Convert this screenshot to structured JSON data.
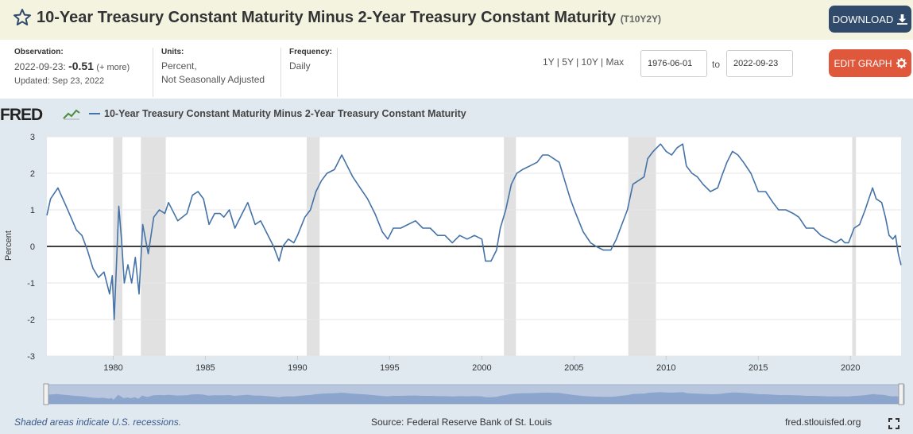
{
  "header": {
    "title": "10-Year Treasury Constant Maturity Minus 2-Year Treasury Constant Maturity",
    "series_id": "(T10Y2Y)",
    "download_label": "DOWNLOAD"
  },
  "meta": {
    "observation_label": "Observation:",
    "observation_date": "2022-09-23:",
    "observation_value": "-0.51",
    "observation_more": "(+ more)",
    "updated": "Updated: Sep 23, 2022",
    "units_label": "Units:",
    "units_line1": "Percent,",
    "units_line2": "Not Seasonally Adjusted",
    "frequency_label": "Frequency:",
    "frequency_value": "Daily"
  },
  "controls": {
    "range_1y": "1Y",
    "range_5y": "5Y",
    "range_10y": "10Y",
    "range_max": "Max",
    "start_date": "1976-06-01",
    "to_label": "to",
    "end_date": "2022-09-23",
    "edit_label": "EDIT GRAPH"
  },
  "legend": {
    "logo": "FRED",
    "series": "10-Year Treasury Constant Maturity Minus 2-Year Treasury Constant Maturity"
  },
  "footer": {
    "recession_note": "Shaded areas indicate U.S. recessions.",
    "source": "Source: Federal Reserve Bank of St. Louis",
    "site": "fred.stlouisfed.org"
  },
  "colors": {
    "line": "#4572a7",
    "recession": "#e1e1e1",
    "header_bg": "#f3f3e0",
    "download_bg": "#2f4a6b",
    "edit_bg": "#e0583c"
  },
  "chart_data": {
    "type": "line",
    "ylabel": "Percent",
    "ylim": [
      -3,
      3
    ],
    "yticks": [
      -3,
      -2,
      -1,
      0,
      1,
      2,
      3
    ],
    "xlim": [
      1976.4,
      2022.75
    ],
    "xticks": [
      1980,
      1985,
      1990,
      1995,
      2000,
      2005,
      2010,
      2015,
      2020
    ],
    "recessions": [
      [
        1980.0,
        1980.5
      ],
      [
        1981.5,
        1982.85
      ],
      [
        1990.5,
        1991.2
      ],
      [
        2001.2,
        2001.85
      ],
      [
        2007.95,
        2009.45
      ],
      [
        2020.1,
        2020.3
      ]
    ],
    "series": [
      {
        "name": "10-Year Treasury Constant Maturity Minus 2-Year Treasury Constant Maturity",
        "x": [
          1976.4,
          1976.6,
          1977.0,
          1977.4,
          1977.7,
          1978.0,
          1978.3,
          1978.6,
          1978.9,
          1979.2,
          1979.5,
          1979.8,
          1979.95,
          1980.05,
          1980.15,
          1980.3,
          1980.45,
          1980.6,
          1980.8,
          1981.0,
          1981.2,
          1981.4,
          1981.6,
          1981.75,
          1981.9,
          1982.2,
          1982.5,
          1982.8,
          1983.0,
          1983.5,
          1984.0,
          1984.3,
          1984.6,
          1984.9,
          1985.2,
          1985.5,
          1985.8,
          1986.0,
          1986.3,
          1986.6,
          1987.0,
          1987.3,
          1987.7,
          1988.0,
          1988.3,
          1988.7,
          1989.0,
          1989.2,
          1989.5,
          1989.8,
          1990.0,
          1990.4,
          1990.7,
          1991.0,
          1991.3,
          1991.6,
          1992.0,
          1992.4,
          1992.7,
          1993.0,
          1993.4,
          1993.8,
          1994.2,
          1994.6,
          1994.9,
          1995.2,
          1995.6,
          1996.0,
          1996.4,
          1996.8,
          1997.2,
          1997.6,
          1998.0,
          1998.4,
          1998.8,
          1999.2,
          1999.6,
          2000.0,
          2000.2,
          2000.5,
          2000.8,
          2001.0,
          2001.3,
          2001.6,
          2001.9,
          2002.2,
          2002.6,
          2003.0,
          2003.3,
          2003.6,
          2003.9,
          2004.2,
          2004.5,
          2004.8,
          2005.1,
          2005.5,
          2005.9,
          2006.2,
          2006.6,
          2007.0,
          2007.3,
          2007.6,
          2007.9,
          2008.2,
          2008.5,
          2008.8,
          2009.0,
          2009.3,
          2009.5,
          2009.7,
          2010.0,
          2010.3,
          2010.6,
          2010.9,
          2011.1,
          2011.4,
          2011.7,
          2012.0,
          2012.4,
          2012.8,
          2013.0,
          2013.3,
          2013.6,
          2013.9,
          2014.2,
          2014.6,
          2015.0,
          2015.4,
          2015.8,
          2016.1,
          2016.5,
          2016.9,
          2017.2,
          2017.6,
          2018.0,
          2018.4,
          2018.8,
          2019.2,
          2019.5,
          2019.7,
          2019.9,
          2020.2,
          2020.5,
          2020.8,
          2021.0,
          2021.2,
          2021.4,
          2021.7,
          2021.9,
          2022.1,
          2022.3,
          2022.45,
          2022.6,
          2022.75
        ],
        "values": [
          0.85,
          1.3,
          1.6,
          1.15,
          0.8,
          0.45,
          0.3,
          -0.1,
          -0.6,
          -0.85,
          -0.7,
          -1.3,
          -0.8,
          -2.0,
          -0.8,
          1.1,
          0.2,
          -1.0,
          -0.5,
          -1.0,
          -0.3,
          -1.3,
          0.6,
          0.2,
          -0.2,
          0.8,
          1.0,
          0.9,
          1.2,
          0.7,
          0.9,
          1.4,
          1.5,
          1.3,
          0.6,
          0.9,
          0.9,
          0.8,
          1.0,
          0.5,
          0.9,
          1.2,
          0.6,
          0.7,
          0.4,
          0.0,
          -0.4,
          0.0,
          0.2,
          0.1,
          0.3,
          0.8,
          1.0,
          1.5,
          1.8,
          2.0,
          2.1,
          2.5,
          2.2,
          1.9,
          1.6,
          1.3,
          0.9,
          0.4,
          0.2,
          0.5,
          0.5,
          0.6,
          0.7,
          0.5,
          0.5,
          0.3,
          0.3,
          0.1,
          0.3,
          0.2,
          0.3,
          0.2,
          -0.4,
          -0.4,
          -0.1,
          0.5,
          1.0,
          1.7,
          2.0,
          2.1,
          2.2,
          2.3,
          2.5,
          2.5,
          2.4,
          2.3,
          1.8,
          1.3,
          0.9,
          0.4,
          0.1,
          0.0,
          -0.1,
          -0.1,
          0.2,
          0.6,
          1.0,
          1.7,
          1.8,
          1.9,
          2.4,
          2.6,
          2.7,
          2.8,
          2.6,
          2.5,
          2.7,
          2.8,
          2.2,
          2.0,
          1.9,
          1.7,
          1.5,
          1.6,
          1.9,
          2.3,
          2.6,
          2.5,
          2.3,
          2.0,
          1.5,
          1.5,
          1.2,
          1.0,
          1.0,
          0.9,
          0.8,
          0.5,
          0.5,
          0.3,
          0.2,
          0.1,
          0.2,
          0.1,
          0.1,
          0.5,
          0.6,
          1.0,
          1.3,
          1.6,
          1.3,
          1.2,
          0.8,
          0.3,
          0.2,
          0.3,
          -0.2,
          -0.51
        ]
      }
    ]
  }
}
